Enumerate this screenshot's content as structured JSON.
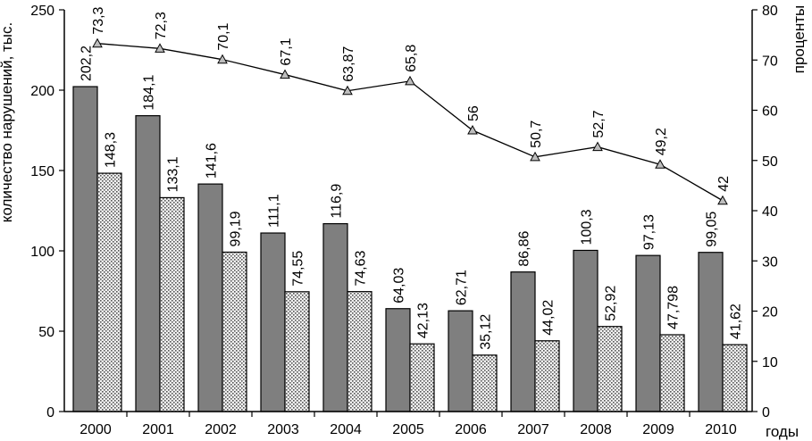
{
  "chart_data": {
    "type": "bar",
    "categories": [
      "2000",
      "2001",
      "2002",
      "2003",
      "2004",
      "2005",
      "2006",
      "2007",
      "2008",
      "2009",
      "2010"
    ],
    "series": [
      {
        "axis": "left",
        "style": "dark",
        "color": "#7f7f7f",
        "values": [
          202.2,
          184.1,
          141.6,
          111.1,
          116.9,
          64.03,
          62.71,
          86.86,
          100.3,
          97.13,
          99.05
        ],
        "labels": [
          "202,2",
          "184,1",
          "141,6",
          "111,1",
          "116,9",
          "64,03",
          "62,71",
          "86,86",
          "100,3",
          "97,13",
          "99,05"
        ]
      },
      {
        "axis": "left",
        "style": "dotted",
        "color": "#d9d9d9",
        "values": [
          148.3,
          133.1,
          99.19,
          74.55,
          74.63,
          42.13,
          35.12,
          44.02,
          52.92,
          47.798,
          41.62
        ],
        "labels": [
          "148,3",
          "133,1",
          "99,19",
          "74,55",
          "74,63",
          "42,13",
          "35,12",
          "44,02",
          "52,92",
          "47,798",
          "41,62"
        ]
      },
      {
        "axis": "right",
        "type": "line",
        "marker": "triangle",
        "values": [
          73.3,
          72.3,
          70.1,
          67.1,
          63.87,
          65.8,
          56,
          50.7,
          52.7,
          49.2,
          42
        ],
        "labels": [
          "73,3",
          "72,3",
          "70,1",
          "67,1",
          "63,87",
          "65,8",
          "56",
          "50,7",
          "52,7",
          "49,2",
          "42"
        ]
      }
    ],
    "ylabel": "количество нарушений, тыс.",
    "y2label": "проценты",
    "xlabel": "годы",
    "ylim": [
      0,
      250
    ],
    "yticks": [
      "0",
      "50",
      "100",
      "150",
      "200",
      "250"
    ],
    "y2lim": [
      0,
      80
    ],
    "y2ticks": [
      "0",
      "10",
      "20",
      "30",
      "40",
      "50",
      "60",
      "70",
      "80"
    ],
    "grid": false,
    "legend": "none"
  }
}
